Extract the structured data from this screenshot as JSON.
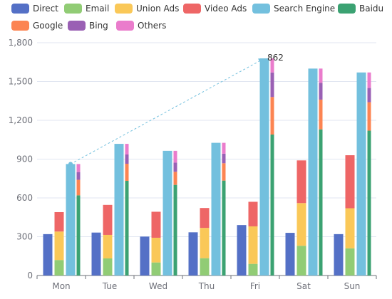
{
  "chart_data": {
    "type": "bar",
    "categories": [
      "Mon",
      "Tue",
      "Wed",
      "Thu",
      "Fri",
      "Sat",
      "Sun"
    ],
    "ylim": [
      0,
      1800
    ],
    "yticks": [
      "0",
      "300",
      "600",
      "900",
      "1,200",
      "1,500",
      "1,800"
    ],
    "grid": true,
    "legend_position": "top",
    "groups": [
      {
        "stack": "direct",
        "series": [
          "Direct"
        ]
      },
      {
        "stack": "ads",
        "series": [
          "Email",
          "Union Ads",
          "Video Ads"
        ]
      },
      {
        "stack": "search",
        "series": [
          "Search Engine"
        ]
      },
      {
        "stack": "engines",
        "series": [
          "Baidu",
          "Google",
          "Bing",
          "Others"
        ]
      }
    ],
    "series": [
      {
        "name": "Direct",
        "color": "#5470c6",
        "values": [
          320,
          332,
          301,
          334,
          390,
          330,
          320
        ]
      },
      {
        "name": "Email",
        "color": "#91cc75",
        "values": [
          120,
          132,
          101,
          134,
          90,
          230,
          210
        ]
      },
      {
        "name": "Union Ads",
        "color": "#fac858",
        "values": [
          220,
          182,
          191,
          234,
          290,
          330,
          310
        ]
      },
      {
        "name": "Video Ads",
        "color": "#ee6666",
        "values": [
          150,
          232,
          201,
          154,
          190,
          330,
          410
        ]
      },
      {
        "name": "Search Engine",
        "color": "#73c0de",
        "values": [
          862,
          1018,
          964,
          1026,
          1679,
          1600,
          1570
        ]
      },
      {
        "name": "Baidu",
        "color": "#3ba272",
        "values": [
          620,
          732,
          701,
          734,
          1090,
          1130,
          1120
        ]
      },
      {
        "name": "Google",
        "color": "#fc8452",
        "values": [
          120,
          132,
          101,
          134,
          290,
          230,
          220
        ]
      },
      {
        "name": "Bing",
        "color": "#9a60b4",
        "values": [
          60,
          72,
          71,
          74,
          190,
          130,
          110
        ]
      },
      {
        "name": "Others",
        "color": "#ea7ccc",
        "values": [
          62,
          82,
          91,
          84,
          109,
          110,
          120
        ]
      }
    ],
    "annotations": [
      {
        "type": "arrow-line",
        "from": {
          "category": "Mon",
          "series": "Search Engine",
          "value": 862
        },
        "to": {
          "category": "Fri",
          "series": "Search Engine",
          "value": 1679
        },
        "label": "862",
        "color": "#73c0de"
      }
    ]
  }
}
